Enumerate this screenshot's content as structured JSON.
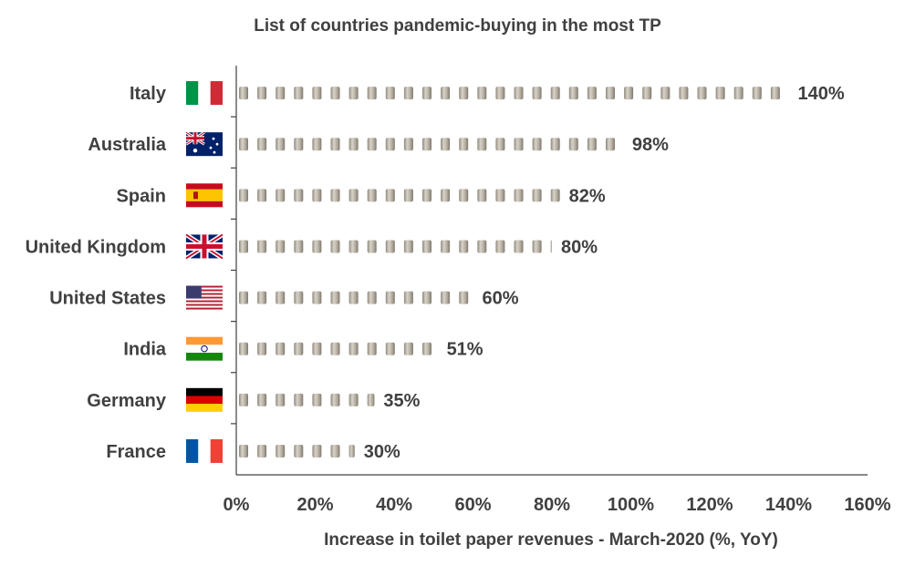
{
  "chart_data": {
    "type": "bar",
    "orientation": "horizontal",
    "title": "List of countries pandemic-buying in the most TP",
    "xlabel": "Increase in toilet paper revenues - March-2020 (%, YoY)",
    "ylabel": "",
    "xlim": [
      0,
      160
    ],
    "xticks": [
      "0%",
      "20%",
      "40%",
      "60%",
      "80%",
      "100%",
      "120%",
      "140%",
      "160%"
    ],
    "categories": [
      "Italy",
      "Australia",
      "Spain",
      "United Kingdom",
      "United States",
      "India",
      "Germany",
      "France"
    ],
    "values": [
      140,
      98,
      82,
      80,
      60,
      51,
      35,
      30
    ],
    "value_labels": [
      "140%",
      "98%",
      "82%",
      "80%",
      "60%",
      "51%",
      "35%",
      "30%"
    ],
    "flag_icons": [
      "italy-flag-icon",
      "australia-flag-icon",
      "spain-flag-icon",
      "uk-flag-icon",
      "usa-flag-icon",
      "india-flag-icon",
      "germany-flag-icon",
      "france-flag-icon"
    ],
    "bar_style": "stacked toilet-paper-roll pictogram",
    "roll_color": "#b8b2a8",
    "grid": false,
    "legend": "none"
  }
}
